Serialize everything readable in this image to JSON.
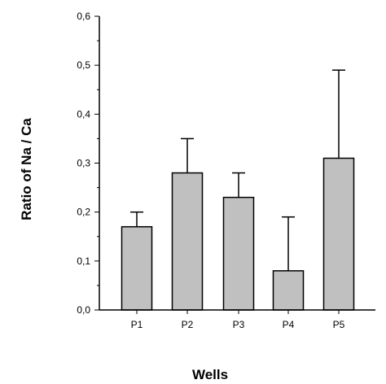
{
  "chart_data": {
    "type": "bar",
    "title": "",
    "xlabel": "Wells",
    "ylabel": "Ratio of Na / Ca",
    "categories": [
      "P1",
      "P2",
      "P3",
      "P4",
      "P5"
    ],
    "values": [
      0.17,
      0.28,
      0.23,
      0.08,
      0.31
    ],
    "error_upper": [
      0.2,
      0.35,
      0.28,
      0.19,
      0.49
    ],
    "ylim": [
      0,
      0.6
    ],
    "yticks": [
      0.0,
      0.1,
      0.2,
      0.3,
      0.4,
      0.5,
      0.6
    ],
    "ytick_labels": [
      "0,0",
      "0,1",
      "0,2",
      "0,3",
      "0,4",
      "0,5",
      "0,6"
    ],
    "grid": false,
    "bar_color": "#c0c0c0",
    "edge_color": "#000000"
  }
}
